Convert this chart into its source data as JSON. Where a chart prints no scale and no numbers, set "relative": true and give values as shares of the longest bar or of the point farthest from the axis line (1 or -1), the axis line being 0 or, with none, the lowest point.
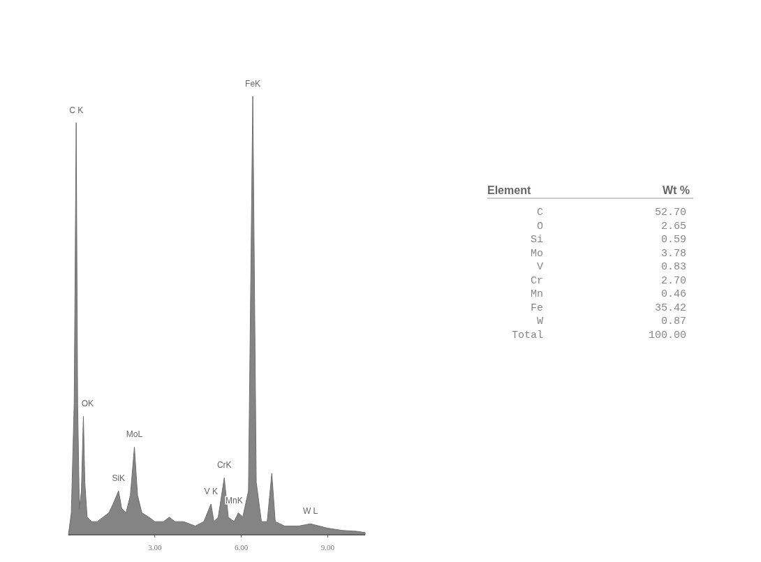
{
  "chart_data": [
    {
      "type": "area",
      "relative": true,
      "tick_labels": "x",
      "xlim": [
        0,
        10.3
      ],
      "xticks": [
        {
          "value": 3,
          "label": "3.00"
        },
        {
          "value": 6,
          "label": "6.00"
        },
        {
          "value": 9,
          "label": "9.00"
        }
      ],
      "x": [
        0,
        0.1,
        0.2,
        0.27,
        0.32,
        0.38,
        0.45,
        0.52,
        0.57,
        0.65,
        0.8,
        1.0,
        1.2,
        1.4,
        1.55,
        1.74,
        1.85,
        2.0,
        2.15,
        2.29,
        2.4,
        2.55,
        2.8,
        3.0,
        3.3,
        3.5,
        3.7,
        4.0,
        4.4,
        4.7,
        4.95,
        5.05,
        5.2,
        5.41,
        5.55,
        5.75,
        5.9,
        6.05,
        6.25,
        6.4,
        6.52,
        6.7,
        6.9,
        7.06,
        7.18,
        7.5,
        8.0,
        8.4,
        9.0,
        9.5,
        10.0,
        10.3
      ],
      "series": [
        {
          "color": "#6e6e6e",
          "values": [
            0,
            0.05,
            0.3,
            0.94,
            0.3,
            0.06,
            0.1,
            0.27,
            0.12,
            0.04,
            0.03,
            0.03,
            0.04,
            0.05,
            0.07,
            0.1,
            0.06,
            0.05,
            0.09,
            0.2,
            0.09,
            0.05,
            0.04,
            0.03,
            0.03,
            0.04,
            0.03,
            0.03,
            0.02,
            0.03,
            0.07,
            0.03,
            0.04,
            0.13,
            0.04,
            0.03,
            0.05,
            0.04,
            0.1,
            1.0,
            0.12,
            0.03,
            0.03,
            0.14,
            0.03,
            0.02,
            0.02,
            0.025,
            0.015,
            0.01,
            0.008,
            0.005
          ]
        }
      ],
      "annotations": [
        {
          "text": "C K",
          "x": 0.27,
          "y": 0.94
        },
        {
          "text": "OK",
          "x": 0.52,
          "y": 0.27
        },
        {
          "text": "SiK",
          "x": 1.74,
          "y": 0.1
        },
        {
          "text": "MoL",
          "x": 2.29,
          "y": 0.2
        },
        {
          "text": "V K",
          "x": 4.95,
          "y": 0.07
        },
        {
          "text": "CrK",
          "x": 5.41,
          "y": 0.13
        },
        {
          "text": "MnK",
          "x": 5.9,
          "y": 0.05
        },
        {
          "text": "FeK",
          "x": 6.4,
          "y": 1.0
        },
        {
          "text": "W L",
          "x": 8.4,
          "y": 0.025
        }
      ]
    },
    {
      "type": "other",
      "xlabel": "Element",
      "ylabel": "Wt %",
      "categories": [
        "C",
        "O",
        "Si",
        "Mo",
        "V",
        "Cr",
        "Mn",
        "Fe",
        "W",
        "Total"
      ],
      "value_labels": [
        "52.70",
        "2.65",
        "0.59",
        "3.78",
        "0.83",
        "2.70",
        "0.46",
        "35.42",
        "0.87",
        "100.00"
      ]
    }
  ]
}
